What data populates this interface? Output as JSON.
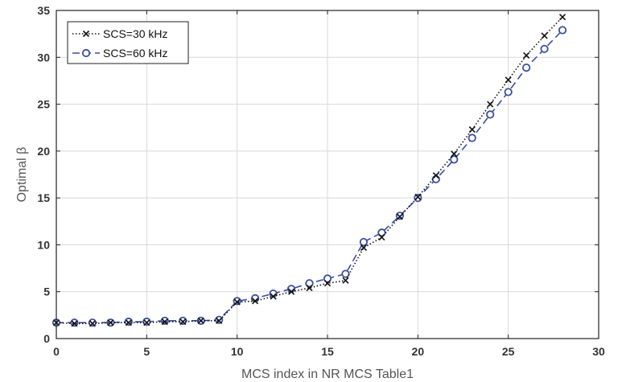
{
  "chart_data": {
    "type": "line",
    "xlabel": "MCS index in NR MCS Table1",
    "ylabel": "Optimal β",
    "xlim": [
      0,
      30
    ],
    "ylim": [
      0,
      35
    ],
    "xticks": [
      "0",
      "5",
      "10",
      "15",
      "20",
      "25",
      "30"
    ],
    "yticks": [
      "0",
      "5",
      "10",
      "15",
      "20",
      "25",
      "30",
      "35"
    ],
    "grid": true,
    "legend_position": "top-left",
    "x": [
      0,
      1,
      2,
      3,
      4,
      5,
      6,
      7,
      8,
      9,
      10,
      11,
      12,
      13,
      14,
      15,
      16,
      17,
      18,
      19,
      20,
      21,
      22,
      23,
      24,
      25,
      26,
      27,
      28
    ],
    "series": [
      {
        "name": "SCS=30 kHz",
        "color": "#111111",
        "marker": "x-mark",
        "line_style": "dotted",
        "values": [
          1.7,
          1.6,
          1.6,
          1.7,
          1.7,
          1.7,
          1.8,
          1.8,
          1.9,
          1.9,
          3.9,
          4.0,
          4.5,
          5.0,
          5.4,
          5.9,
          6.2,
          9.7,
          10.8,
          13.0,
          15.1,
          17.4,
          19.7,
          22.3,
          25.0,
          27.6,
          30.2,
          32.3,
          34.3
        ]
      },
      {
        "name": "SCS=60 kHz",
        "color": "#3b4fa0",
        "marker": "circle",
        "line_style": "dashed",
        "values": [
          1.7,
          1.7,
          1.7,
          1.7,
          1.8,
          1.8,
          1.9,
          1.9,
          1.9,
          2.0,
          4.0,
          4.3,
          4.8,
          5.3,
          5.9,
          6.4,
          6.9,
          10.3,
          11.3,
          13.1,
          15.0,
          17.0,
          19.1,
          21.4,
          23.9,
          26.3,
          28.9,
          30.9,
          32.9
        ]
      }
    ]
  }
}
